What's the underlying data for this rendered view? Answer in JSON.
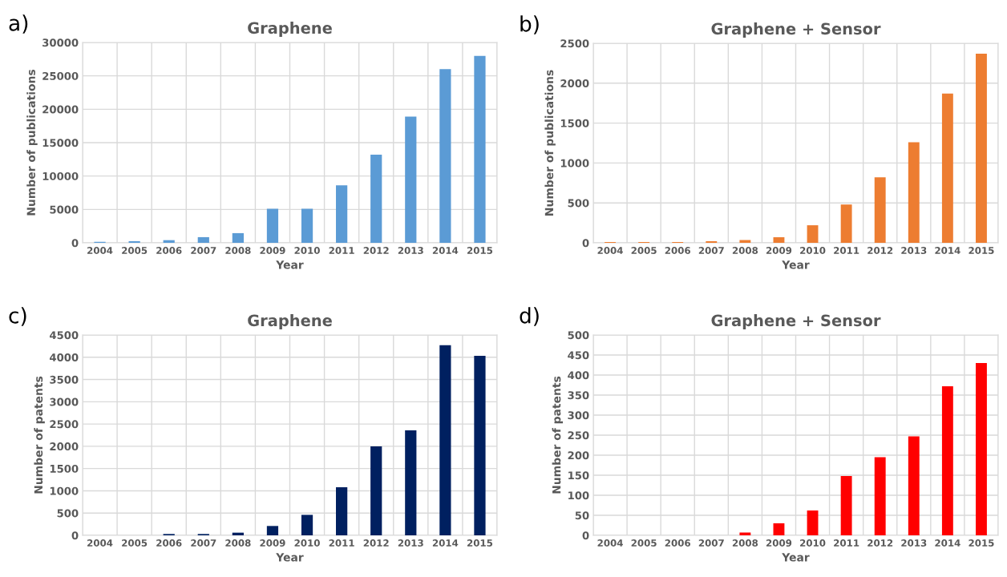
{
  "chart_data": [
    {
      "type": "bar",
      "title": "Graphene",
      "xlabel": "Year",
      "ylabel": "Number of publications",
      "annotations": [
        "a)"
      ],
      "categories": [
        "2004",
        "2005",
        "2006",
        "2007",
        "2008",
        "2009",
        "2010",
        "2011",
        "2012",
        "2013",
        "2014",
        "2015"
      ],
      "values": [
        150,
        250,
        400,
        850,
        1450,
        5100,
        5100,
        8600,
        13200,
        18900,
        26000,
        28000
      ],
      "color": "#5b9bd5",
      "ylim": [
        0,
        30000
      ],
      "yticks": [
        0,
        5000,
        10000,
        15000,
        20000,
        25000,
        30000
      ],
      "grid": true
    },
    {
      "type": "bar",
      "title": "Graphene + Sensor",
      "xlabel": "Year",
      "ylabel": "Number of publications",
      "annotations": [
        "b)"
      ],
      "categories": [
        "2004",
        "2005",
        "2006",
        "2007",
        "2008",
        "2009",
        "2010",
        "2011",
        "2012",
        "2013",
        "2014",
        "2015"
      ],
      "values": [
        10,
        10,
        10,
        20,
        35,
        70,
        220,
        480,
        820,
        1260,
        1870,
        2370
      ],
      "color": "#ed7d31",
      "ylim": [
        0,
        2500
      ],
      "yticks": [
        0,
        500,
        1000,
        1500,
        2000,
        2500
      ],
      "grid": true
    },
    {
      "type": "bar",
      "title": "Graphene",
      "xlabel": "Year",
      "ylabel": "Number of patents",
      "annotations": [
        "c)"
      ],
      "categories": [
        "2004",
        "2005",
        "2006",
        "2007",
        "2008",
        "2009",
        "2010",
        "2011",
        "2012",
        "2013",
        "2014",
        "2015"
      ],
      "values": [
        0,
        0,
        30,
        30,
        60,
        210,
        460,
        1080,
        2000,
        2360,
        4270,
        4030
      ],
      "color": "#002060",
      "ylim": [
        0,
        4500
      ],
      "yticks": [
        0,
        500,
        1000,
        1500,
        2000,
        2500,
        3000,
        3500,
        4000,
        4500
      ],
      "grid": true
    },
    {
      "type": "bar",
      "title": "Graphene + Sensor",
      "xlabel": "Year",
      "ylabel": "Number of patents",
      "annotations": [
        "d)"
      ],
      "categories": [
        "2004",
        "2005",
        "2006",
        "2007",
        "2008",
        "2009",
        "2010",
        "2011",
        "2012",
        "2013",
        "2014",
        "2015"
      ],
      "values": [
        0,
        0,
        0,
        0,
        7,
        30,
        62,
        148,
        195,
        247,
        372,
        430
      ],
      "color": "#ff0000",
      "ylim": [
        0,
        500
      ],
      "yticks": [
        0,
        50,
        100,
        150,
        200,
        250,
        300,
        350,
        400,
        450,
        500
      ],
      "grid": true
    }
  ]
}
